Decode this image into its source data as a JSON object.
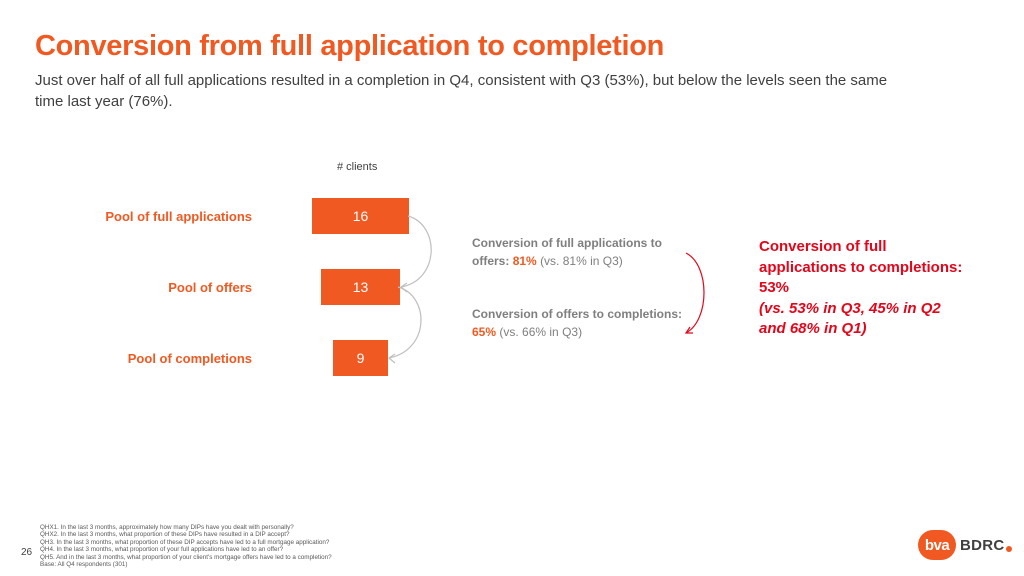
{
  "title": "Conversion from full application to completion",
  "subtitle": "Just over half of all full applications resulted in a completion in Q4, consistent with Q3 (53%), but below the levels seen the same time last year (76%).",
  "chart_data": {
    "type": "bar",
    "orientation": "horizontal",
    "xlabel": "# clients",
    "categories": [
      "Pool of full applications",
      "Pool of offers",
      "Pool of completions"
    ],
    "values": [
      16,
      13,
      9
    ],
    "xlim": [
      0,
      16
    ],
    "grid": false
  },
  "conversions": [
    {
      "label": "Conversion of full applications to offers:",
      "pct": "81%",
      "comparison": "(vs. 81% in Q3)"
    },
    {
      "label": "Conversion of offers to completions:",
      "pct": "65%",
      "comparison": "(vs. 66% in Q3)"
    }
  ],
  "summary": {
    "headline": "Conversion of full applications to completions: 53%",
    "comparison": "(vs. 53% in Q3, 45% in Q2 and 68% in Q1)"
  },
  "footnotes": [
    "QHX1. In the last 3 months, approximately how many DIPs have you dealt with personally?",
    "QHX2. In the last 3 months, what proportion of these DIPs have resulted in a DIP accept?",
    "QH3. In the last 3 months, what proportion of these DIP accepts have led to a full mortgage application?",
    "QH4. In the last 3 months, what proportion of your full applications have led to an offer?",
    "QH5. And in the last 3 months, what proportion of your client's mortgage offers have led to a completion?",
    "Base: All Q4 respondents (301)"
  ],
  "page_number": "26",
  "logo": {
    "mark": "bva",
    "text": "BDRC",
    "mark_name": "bva-bdrc-logo"
  },
  "colors": {
    "accent": "#F05A22",
    "highlight": "#E3061B",
    "text": "#404040",
    "muted": "#7F7F7F"
  }
}
